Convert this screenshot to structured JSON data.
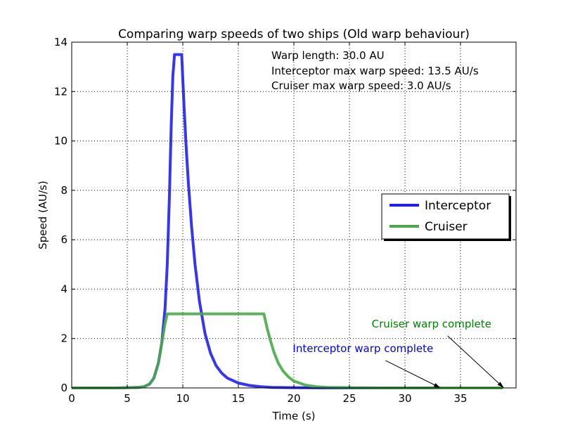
{
  "chart_data": {
    "type": "line",
    "title": "Comparing warp speeds of two ships (Old warp behaviour)",
    "xlabel": "Time (s)",
    "ylabel": "Speed (AU/s)",
    "xlim": [
      0,
      40
    ],
    "ylim": [
      0,
      14
    ],
    "xticks": [
      0,
      5,
      10,
      15,
      20,
      25,
      30,
      35
    ],
    "yticks": [
      0,
      2,
      4,
      6,
      8,
      10,
      12,
      14
    ],
    "grid": true,
    "legend_position": "center-right",
    "info_text": [
      "Warp length: 30.0 AU",
      "Interceptor max warp speed: 13.5 AU/s",
      "Cruiser max warp speed: 3.0 AU/s"
    ],
    "series": [
      {
        "name": "Interceptor",
        "color": "#1f1ff2",
        "x": [
          0,
          2,
          4,
          5,
          6,
          6.5,
          7,
          7.4,
          7.8,
          8.1,
          8.4,
          8.6,
          8.8,
          8.95,
          9.1,
          9.25,
          9.9,
          10.1,
          10.3,
          10.5,
          10.8,
          11.1,
          11.5,
          12,
          12.5,
          13,
          13.5,
          14,
          15,
          16,
          17,
          18,
          20,
          23,
          26,
          30,
          33
        ],
        "y": [
          0,
          0,
          0,
          0.01,
          0.02,
          0.05,
          0.15,
          0.4,
          1.0,
          1.8,
          3.2,
          5.0,
          7.8,
          10.5,
          12.6,
          13.5,
          13.5,
          11.5,
          9.8,
          8.3,
          6.5,
          5.0,
          3.5,
          2.2,
          1.4,
          0.9,
          0.6,
          0.4,
          0.2,
          0.1,
          0.05,
          0.02,
          0.01,
          0,
          0,
          0,
          0
        ]
      },
      {
        "name": "Cruiser",
        "color": "#4aa84a",
        "x": [
          0,
          2,
          4,
          5,
          6,
          6.5,
          7,
          7.4,
          7.8,
          8.1,
          8.4,
          8.6,
          17.3,
          17.6,
          17.9,
          18.2,
          18.6,
          19,
          19.5,
          20,
          21,
          22,
          23,
          25,
          28,
          32,
          36,
          38.8
        ],
        "y": [
          0,
          0,
          0,
          0.01,
          0.02,
          0.05,
          0.15,
          0.4,
          1.0,
          1.8,
          2.6,
          3.0,
          3.0,
          2.4,
          1.9,
          1.45,
          1.0,
          0.7,
          0.45,
          0.28,
          0.12,
          0.05,
          0.02,
          0.01,
          0,
          0,
          0,
          0
        ]
      }
    ],
    "annotations": [
      {
        "text": "Interceptor warp complete",
        "color": "#0000ff",
        "text_x": 19.9,
        "text_y": 1.45,
        "point_x": 33.2,
        "point_y": 0.0
      },
      {
        "text": "Cruiser warp complete",
        "color": "#008000",
        "text_x": 27.0,
        "text_y": 2.45,
        "point_x": 38.9,
        "point_y": 0.0
      }
    ]
  }
}
